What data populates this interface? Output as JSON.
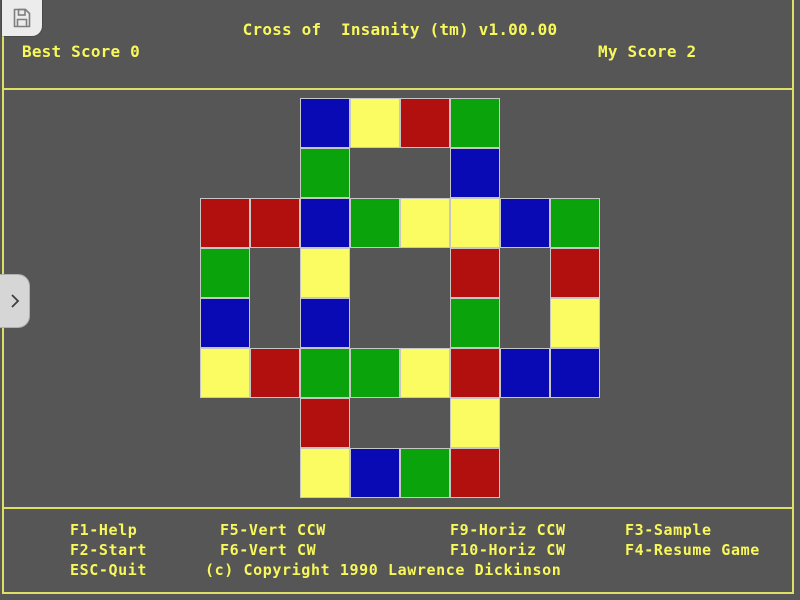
{
  "header": {
    "title": "Cross of  Insanity (tm) v1.00.00",
    "best_score_text": "Best Score 0",
    "best_score": 0,
    "my_score_text": "My Score 2",
    "my_score": 2
  },
  "colors": {
    "background": "#565656",
    "text_yellow": "#f8f85a",
    "line_yellow": "#dfdf66",
    "cell_border": "#c6c6c6"
  },
  "icons": {
    "save": "floppy-disk-icon",
    "panel_toggle": "chevron-right-icon"
  },
  "board": {
    "rows": 8,
    "cols": 8,
    "cell_size": 50,
    "palette": {
      "red": "#b20f0f",
      "green": "#0ba30b",
      "blue": "#0a0ab5",
      "yellow": "#fbfb62"
    },
    "cells": [
      [
        null,
        null,
        "blue",
        "yellow",
        "red",
        "green",
        null,
        null
      ],
      [
        null,
        null,
        "green",
        null,
        null,
        "blue",
        null,
        null
      ],
      [
        "red",
        "red",
        "blue",
        "green",
        "yellow",
        "yellow",
        "blue",
        "green"
      ],
      [
        "green",
        null,
        "yellow",
        null,
        null,
        "red",
        null,
        "red"
      ],
      [
        "blue",
        null,
        "blue",
        null,
        null,
        "green",
        null,
        "yellow"
      ],
      [
        "yellow",
        "red",
        "green",
        "green",
        "yellow",
        "red",
        "blue",
        "blue"
      ],
      [
        null,
        null,
        "red",
        null,
        null,
        "yellow",
        null,
        null
      ],
      [
        null,
        null,
        "yellow",
        "blue",
        "green",
        "red",
        null,
        null
      ]
    ]
  },
  "menu": {
    "rows": [
      [
        "F1-Help",
        "F5-Vert CCW",
        "F9-Horiz CCW",
        "F3-Sample"
      ],
      [
        "F2-Start",
        "F6-Vert CW",
        "F10-Horiz CW",
        "F4-Resume Game"
      ],
      [
        "ESC-Quit",
        "(c) Copyright 1990 Lawrence Dickinson"
      ]
    ]
  }
}
